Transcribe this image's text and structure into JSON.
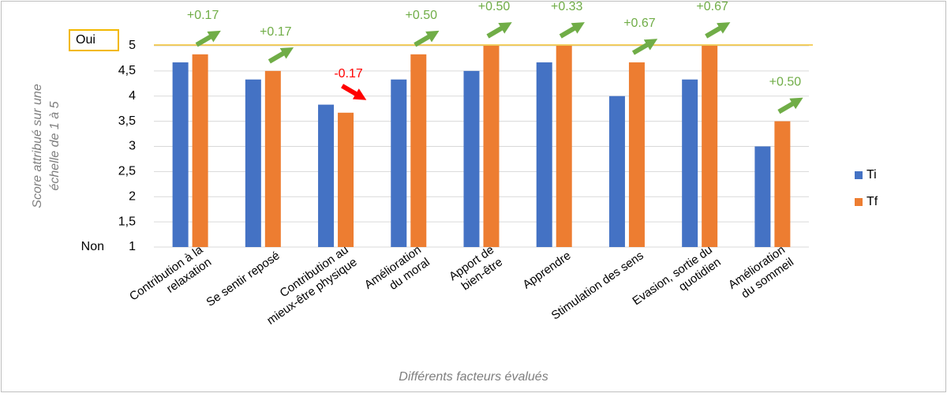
{
  "chart_data": {
    "type": "bar",
    "y_axis_label": [
      "Score attribué sur une",
      "échelle de 1 à 5"
    ],
    "x_axis_label": "Différents  facteurs évalués",
    "y_low_label": "Non",
    "y_high_label": "Oui",
    "categories": [
      [
        "Contribution à la",
        "relaxation"
      ],
      [
        "Se sentir reposé"
      ],
      [
        "Contribution au",
        "mieux-être physique"
      ],
      [
        "Amélioration",
        "du moral"
      ],
      [
        "Apport de",
        "bien-être"
      ],
      [
        "Apprendre"
      ],
      [
        "Stimulation des sens"
      ],
      [
        "Evasion, sortie du",
        "quotidien"
      ],
      [
        "Amélioration",
        "du sommeil"
      ]
    ],
    "series": [
      {
        "name": "Ti",
        "color": "#4472c4",
        "values": [
          4.67,
          4.33,
          3.83,
          4.33,
          4.5,
          4.67,
          4.0,
          4.33,
          3.0
        ]
      },
      {
        "name": "Tf",
        "color": "#ed7d31",
        "values": [
          4.83,
          4.5,
          3.67,
          4.83,
          5.0,
          5.0,
          4.67,
          5.0,
          3.5
        ]
      }
    ],
    "annotations": [
      {
        "text": "+0.17",
        "color": "#70ad47"
      },
      {
        "text": "+0.17",
        "color": "#70ad47"
      },
      {
        "text": "-0.17",
        "color": "#ff0000"
      },
      {
        "text": "+0.50",
        "color": "#70ad47"
      },
      {
        "text": "+0.50",
        "color": "#70ad47"
      },
      {
        "text": "+0.33",
        "color": "#70ad47"
      },
      {
        "text": "+0.67",
        "color": "#70ad47"
      },
      {
        "text": "+0.67",
        "color": "#70ad47"
      },
      {
        "text": "+0.50",
        "color": "#70ad47"
      }
    ],
    "ylim": [
      1,
      5
    ],
    "yticks": [
      1,
      {
        "value": 1.5,
        "label": "1,5"
      },
      2,
      {
        "value": 2.5,
        "label": "2,5"
      },
      3,
      {
        "value": 3.5,
        "label": "3,5"
      },
      4,
      {
        "value": 4.5,
        "label": "4,5"
      },
      5
    ],
    "reference_line": {
      "value": 5,
      "color": "#f2c12e"
    },
    "grid": true,
    "legend_position": "right"
  }
}
